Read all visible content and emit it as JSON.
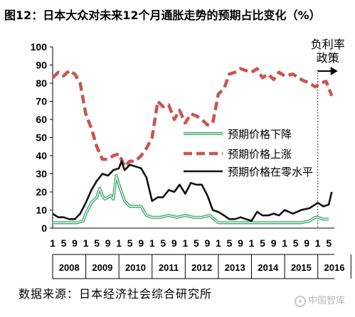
{
  "title": "图12：日本大众对未来12个月通胀走势的预期占比变化（%）",
  "source": "数据来源：日本经济社会综合研究所",
  "watermark": "中国智库",
  "chart_data": {
    "type": "line",
    "ylim": [
      0,
      100
    ],
    "yticks": [
      0,
      10,
      20,
      30,
      40,
      50,
      60,
      70,
      80,
      90,
      100
    ],
    "xlim": [
      2008.0,
      2016.5
    ],
    "month_tick_labels": [
      "1",
      "5",
      "9",
      "1",
      "5",
      "9",
      "1",
      "5",
      "9",
      "1",
      "5",
      "9",
      "1",
      "5",
      "9",
      "1",
      "5",
      "9",
      "1",
      "5",
      "9",
      "1",
      "5",
      "9",
      "1",
      "5"
    ],
    "year_labels": [
      "2008",
      "2009",
      "2010",
      "2011",
      "2012",
      "2013",
      "2014",
      "2015",
      "2016"
    ],
    "annotation": {
      "text": "负利率\n政策",
      "x": 2016.0
    },
    "legend_position": "center-right",
    "series": [
      {
        "name": "预期价格下降",
        "style": "double",
        "color": "#3aa86b",
        "x": [
          2008.0,
          2008.25,
          2008.5,
          2008.75,
          2008.92,
          2009.0,
          2009.17,
          2009.33,
          2009.42,
          2009.5,
          2009.58,
          2009.67,
          2009.75,
          2009.83,
          2009.92,
          2010.0,
          2010.17,
          2010.33,
          2010.5,
          2010.67,
          2010.83,
          2011.0,
          2011.25,
          2011.5,
          2011.75,
          2012.0,
          2012.25,
          2012.5,
          2012.75,
          2013.0,
          2013.25,
          2013.5,
          2013.75,
          2014.0,
          2014.5,
          2015.0,
          2015.5,
          2015.75,
          2015.92,
          2016.0,
          2016.17,
          2016.33
        ],
        "values": [
          3,
          3,
          3,
          3,
          4,
          8,
          14,
          17,
          22,
          18,
          16,
          17,
          18,
          16,
          29,
          24,
          15,
          12,
          12,
          12,
          7,
          6,
          6,
          7,
          6,
          7,
          6,
          6,
          7,
          3,
          3,
          3,
          3,
          3,
          3,
          3,
          3,
          4,
          6,
          6,
          5,
          5
        ]
      },
      {
        "name": "预期价格上涨",
        "style": "dashed",
        "color": "#c8564f",
        "x": [
          2008.0,
          2008.17,
          2008.33,
          2008.5,
          2008.67,
          2008.83,
          2009.0,
          2009.17,
          2009.33,
          2009.5,
          2009.67,
          2009.83,
          2010.0,
          2010.17,
          2010.33,
          2010.5,
          2010.67,
          2010.83,
          2011.0,
          2011.17,
          2011.33,
          2011.5,
          2011.67,
          2011.83,
          2012.0,
          2012.17,
          2012.33,
          2012.5,
          2012.67,
          2012.83,
          2013.0,
          2013.17,
          2013.33,
          2013.5,
          2013.67,
          2013.83,
          2014.0,
          2014.17,
          2014.33,
          2014.5,
          2014.67,
          2014.83,
          2015.0,
          2015.25,
          2015.5,
          2015.75,
          2015.92,
          2016.08,
          2016.25,
          2016.42
        ],
        "values": [
          83,
          86,
          84,
          87,
          85,
          80,
          63,
          55,
          45,
          38,
          38,
          40,
          41,
          34,
          37,
          37,
          40,
          44,
          50,
          70,
          67,
          68,
          60,
          65,
          58,
          63,
          62,
          60,
          57,
          58,
          74,
          77,
          85,
          86,
          88,
          87,
          86,
          88,
          83,
          85,
          82,
          86,
          84,
          85,
          82,
          80,
          78,
          80,
          81,
          73
        ]
      },
      {
        "name": "预期价格在零水平",
        "style": "solid",
        "color": "#111111",
        "x": [
          2008.0,
          2008.17,
          2008.33,
          2008.5,
          2008.67,
          2008.83,
          2009.0,
          2009.17,
          2009.33,
          2009.5,
          2009.67,
          2009.83,
          2010.0,
          2010.08,
          2010.17,
          2010.33,
          2010.5,
          2010.67,
          2010.83,
          2011.0,
          2011.17,
          2011.33,
          2011.5,
          2011.67,
          2011.83,
          2012.0,
          2012.17,
          2012.33,
          2012.5,
          2012.67,
          2012.83,
          2013.0,
          2013.17,
          2013.33,
          2013.5,
          2013.67,
          2013.83,
          2014.0,
          2014.17,
          2014.33,
          2014.5,
          2014.67,
          2014.83,
          2015.0,
          2015.25,
          2015.5,
          2015.75,
          2016.0,
          2016.17,
          2016.33,
          2016.42
        ],
        "values": [
          8,
          6,
          6,
          5,
          5,
          8,
          14,
          21,
          26,
          30,
          29,
          32,
          33,
          37,
          32,
          35,
          34,
          33,
          28,
          15,
          17,
          17,
          21,
          20,
          24,
          19,
          25,
          24,
          24,
          18,
          10,
          9,
          7,
          5,
          5,
          6,
          5,
          4,
          9,
          7,
          7,
          8,
          7,
          10,
          8,
          10,
          11,
          14,
          12,
          13,
          20
        ]
      }
    ]
  }
}
